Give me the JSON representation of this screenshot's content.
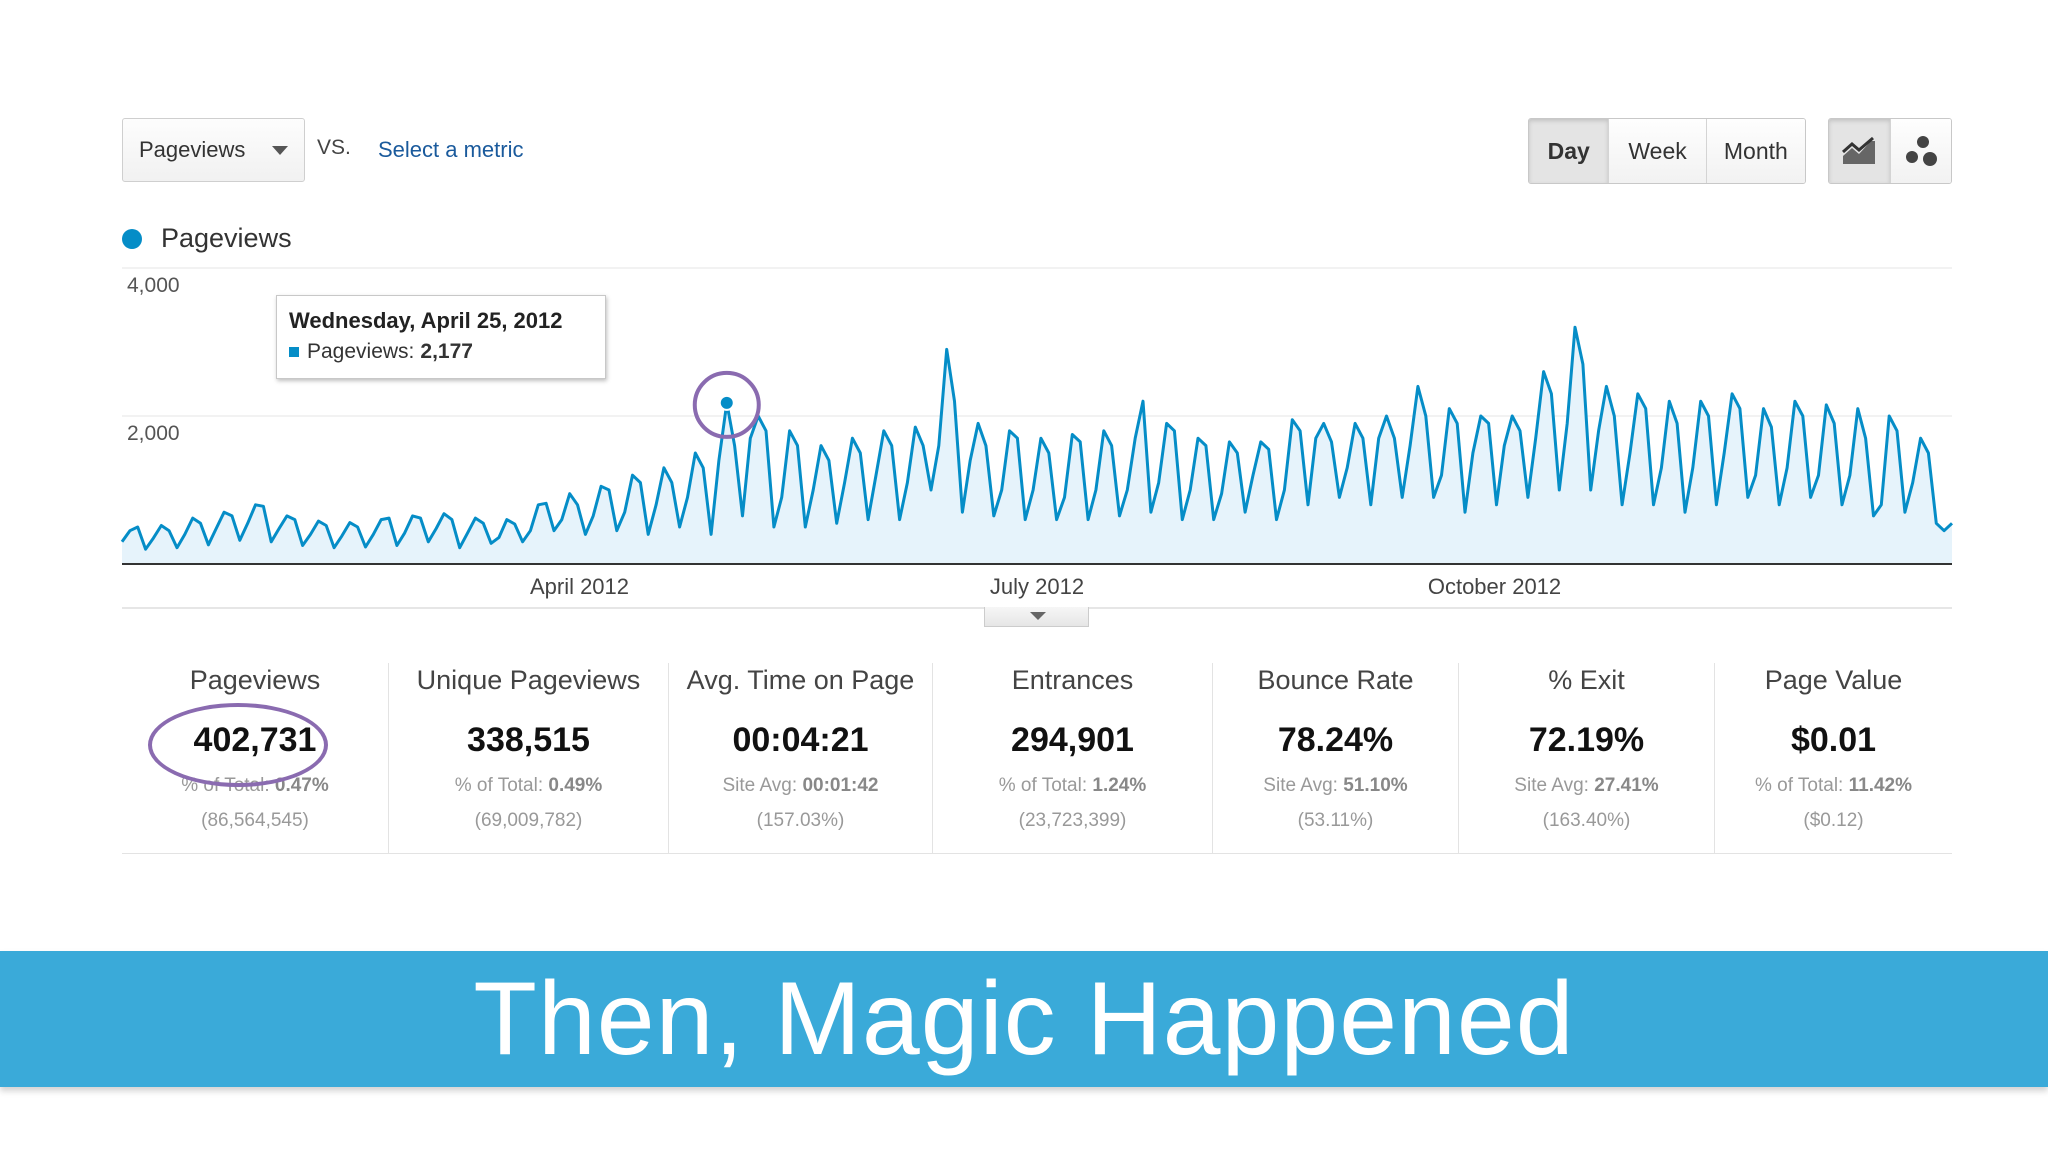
{
  "toolbar": {
    "metric": "Pageviews",
    "vs": "VS.",
    "select_metric": "Select a metric",
    "periods": [
      "Day",
      "Week",
      "Month"
    ],
    "active_period": "Day",
    "view_icons": [
      "line-chart-icon",
      "motion-chart-icon"
    ]
  },
  "legend": {
    "series": "Pageviews",
    "color": "#058dc7"
  },
  "tooltip": {
    "date": "Wednesday, April 25, 2012",
    "label": "Pageviews:",
    "value": "2,177"
  },
  "chart_data": {
    "type": "area",
    "series": [
      {
        "name": "Pageviews",
        "color": "#058dc7",
        "values": [
          300,
          450,
          500,
          200,
          350,
          520,
          450,
          220,
          400,
          620,
          550,
          260,
          480,
          700,
          650,
          320,
          550,
          800,
          780,
          300,
          480,
          650,
          600,
          250,
          400,
          580,
          520,
          220,
          380,
          560,
          500,
          230,
          400,
          600,
          620,
          250,
          420,
          650,
          620,
          300,
          480,
          680,
          600,
          220,
          420,
          620,
          550,
          280,
          360,
          600,
          540,
          300,
          450,
          800,
          820,
          450,
          600,
          950,
          800,
          400,
          650,
          1050,
          1000,
          450,
          700,
          1200,
          1100,
          400,
          800,
          1300,
          1100,
          500,
          900,
          1500,
          1300,
          400,
          1400,
          2177,
          1600,
          650,
          1700,
          2000,
          1800,
          500,
          900,
          1800,
          1600,
          500,
          1000,
          1600,
          1400,
          550,
          1100,
          1700,
          1500,
          600,
          1200,
          1800,
          1600,
          600,
          1100,
          1850,
          1600,
          1000,
          1600,
          2900,
          2200,
          700,
          1400,
          1900,
          1600,
          650,
          1000,
          1800,
          1700,
          600,
          1000,
          1700,
          1500,
          600,
          900,
          1750,
          1650,
          600,
          1000,
          1800,
          1600,
          650,
          1000,
          1700,
          2200,
          700,
          1100,
          1900,
          1800,
          600,
          1000,
          1700,
          1600,
          600,
          950,
          1650,
          1500,
          700,
          1200,
          1650,
          1550,
          600,
          1000,
          1950,
          1800,
          800,
          1700,
          1900,
          1650,
          900,
          1300,
          1900,
          1700,
          800,
          1700,
          2000,
          1700,
          900,
          1600,
          2400,
          2000,
          900,
          1200,
          2100,
          1900,
          700,
          1500,
          2000,
          1900,
          800,
          1600,
          2000,
          1800,
          900,
          1700,
          2600,
          2300,
          1000,
          1900,
          3200,
          2700,
          1000,
          1800,
          2400,
          2000,
          800,
          1500,
          2300,
          2100,
          800,
          1300,
          2200,
          1900,
          700,
          1300,
          2200,
          2000,
          800,
          1500,
          2300,
          2100,
          900,
          1200,
          2100,
          1850,
          800,
          1300,
          2200,
          2000,
          900,
          1200,
          2150,
          1900,
          800,
          1200,
          2100,
          1700,
          650,
          800,
          2000,
          1800,
          700,
          1100,
          1700,
          1500,
          550,
          450,
          550
        ]
      }
    ],
    "y_ticks": [
      "4,000",
      "2,000"
    ],
    "x_labels": [
      "April 2012",
      "July 2012",
      "October 2012"
    ],
    "ylim": [
      0,
      4000
    ],
    "highlight": {
      "date": "Wednesday, April 25, 2012",
      "value": 2177
    }
  },
  "metrics": [
    {
      "label": "Pageviews",
      "value": "402,731",
      "sub_label": "% of Total:",
      "sub_value": "0.47%",
      "sub2": "(86,564,545)"
    },
    {
      "label": "Unique Pageviews",
      "value": "338,515",
      "sub_label": "% of Total:",
      "sub_value": "0.49%",
      "sub2": "(69,009,782)"
    },
    {
      "label": "Avg. Time on Page",
      "value": "00:04:21",
      "sub_label": "Site Avg:",
      "sub_value": "00:01:42",
      "sub2": "(157.03%)"
    },
    {
      "label": "Entrances",
      "value": "294,901",
      "sub_label": "% of Total:",
      "sub_value": "1.24%",
      "sub2": "(23,723,399)"
    },
    {
      "label": "Bounce Rate",
      "value": "78.24%",
      "sub_label": "Site Avg:",
      "sub_value": "51.10%",
      "sub2": "(53.11%)"
    },
    {
      "label": "% Exit",
      "value": "72.19%",
      "sub_label": "Site Avg:",
      "sub_value": "27.41%",
      "sub2": "(163.40%)"
    },
    {
      "label": "Page Value",
      "value": "$0.01",
      "sub_label": "% of Total:",
      "sub_value": "11.42%",
      "sub2": "($0.12)"
    }
  ],
  "banner": {
    "text": "Then, Magic Happened"
  }
}
